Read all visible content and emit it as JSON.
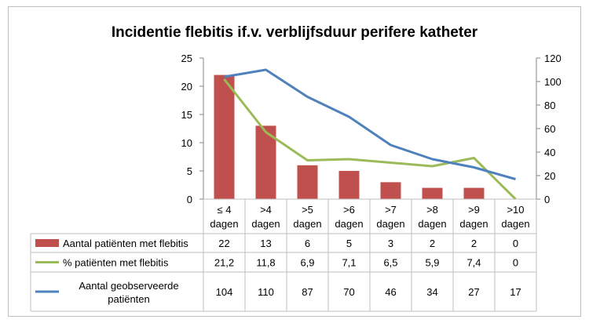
{
  "chart_data": {
    "type": "bar",
    "title": "Incidentie flebitis if.v. verblijfsduur perifere katheter",
    "categories": [
      [
        "≤ 4",
        "dagen"
      ],
      [
        ">4",
        "dagen"
      ],
      [
        ">5",
        "dagen"
      ],
      [
        ">6",
        "dagen"
      ],
      [
        ">7",
        "dagen"
      ],
      [
        ">8",
        "dagen"
      ],
      [
        ">9",
        "dagen"
      ],
      [
        ">10",
        "dagen"
      ]
    ],
    "y_left": {
      "min": 0,
      "max": 25,
      "step": 5,
      "ticks": [
        "0",
        "5",
        "10",
        "15",
        "20",
        "25"
      ]
    },
    "y_right": {
      "min": 0,
      "max": 120,
      "step": 20,
      "ticks": [
        "0",
        "20",
        "40",
        "60",
        "80",
        "100",
        "120"
      ]
    },
    "grid": false,
    "legend": "table-below",
    "series": [
      {
        "name": "Aantal patiënten met flebitis",
        "kind": "bar",
        "axis": "left",
        "color": "#c0504d",
        "values": [
          22,
          13,
          6,
          5,
          3,
          2,
          2,
          0
        ],
        "table_values": [
          "22",
          "13",
          "6",
          "5",
          "3",
          "2",
          "2",
          "0"
        ]
      },
      {
        "name": "% patiënten met flebitis",
        "kind": "line",
        "axis": "right",
        "color": "#9bbb59",
        "values": [
          21.2,
          11.8,
          6.9,
          7.1,
          6.5,
          5.9,
          7.4,
          0
        ],
        "plot_values": [
          102,
          57,
          33,
          34,
          31,
          28,
          35,
          0
        ],
        "table_values": [
          "21,2",
          "11,8",
          "6,9",
          "7,1",
          "6,5",
          "5,9",
          "7,4",
          "0"
        ]
      },
      {
        "name_lines": [
          "Aantal geobserveerde",
          "patiënten"
        ],
        "kind": "line",
        "axis": "right",
        "color": "#4f81bd",
        "values": [
          104,
          110,
          87,
          70,
          46,
          34,
          27,
          17
        ],
        "table_values": [
          "104",
          "110",
          "87",
          "70",
          "46",
          "34",
          "27",
          "17"
        ]
      }
    ]
  }
}
